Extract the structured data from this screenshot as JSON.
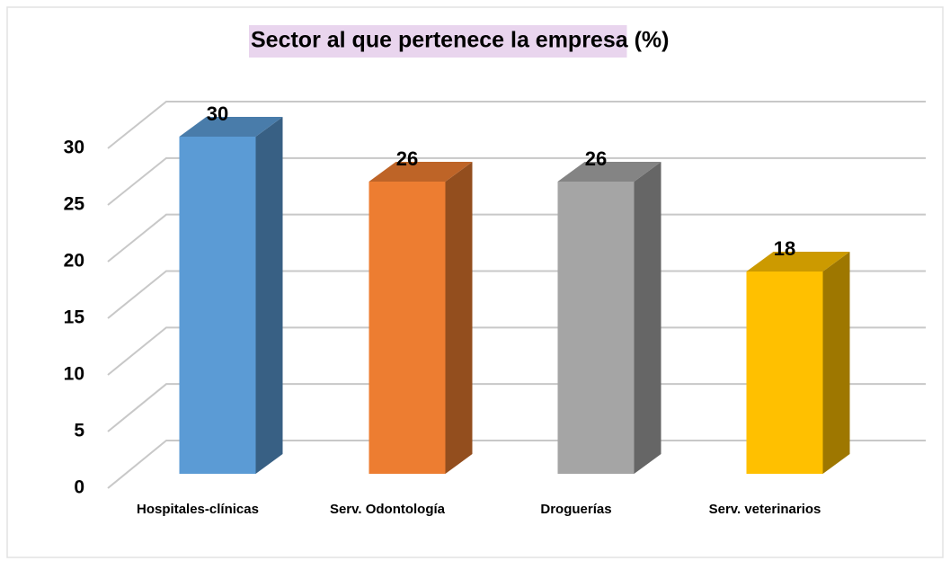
{
  "chart_data": {
    "type": "bar3d",
    "title": "Sector al que pertenece la empresa (%)",
    "categories": [
      "Hospitales-clínicas",
      "Serv. Odontología",
      "Droguerías",
      "Serv. veterinarios"
    ],
    "values": [
      30,
      26,
      26,
      18
    ],
    "colors": [
      "#5b9bd5",
      "#ed7d31",
      "#a5a5a5",
      "#ffc000"
    ],
    "ylim": [
      0,
      30
    ],
    "yticks": [
      0,
      5,
      10,
      15,
      20,
      25,
      30
    ],
    "grid": true
  }
}
